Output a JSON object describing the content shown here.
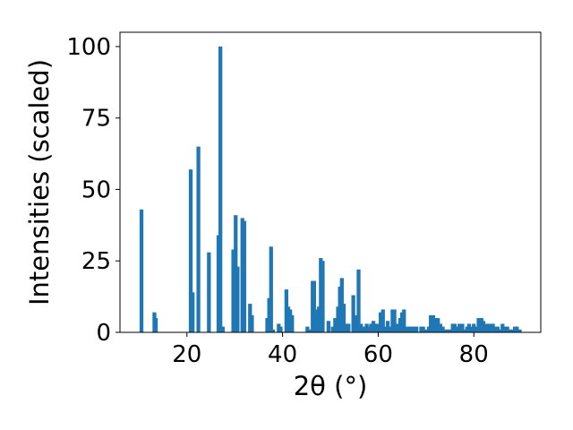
{
  "chart_data": {
    "type": "bar",
    "xlabel": "2θ (°)",
    "ylabel": "Intensities (scaled)",
    "xlim": [
      6,
      94
    ],
    "ylim": [
      0,
      105
    ],
    "xticks": [
      20,
      40,
      60,
      80
    ],
    "yticks": [
      0,
      25,
      50,
      75,
      100
    ],
    "grid": false,
    "bar_color": "#1f77b4",
    "bar_width": 0.8,
    "x": [
      10.5,
      13.2,
      13.5,
      20.8,
      21.2,
      22.4,
      24.6,
      26.6,
      27.0,
      27.5,
      29.7,
      30.2,
      30.6,
      31.6,
      32.0,
      33.2,
      33.6,
      36.8,
      37.2,
      37.6,
      38.0,
      39.2,
      39.6,
      40.8,
      41.2,
      41.6,
      42.0,
      45.2,
      45.6,
      46.3,
      46.6,
      47.0,
      47.6,
      48.0,
      48.4,
      49.6,
      50.5,
      51.0,
      51.6,
      52.0,
      52.4,
      52.8,
      53.4,
      53.8,
      54.8,
      55.4,
      55.9,
      56.4,
      57.0,
      57.6,
      58.0,
      58.5,
      59.0,
      59.4,
      60.0,
      60.5,
      61.0,
      61.4,
      62.0,
      62.6,
      63.0,
      63.4,
      64.0,
      64.6,
      65.0,
      65.4,
      66.0,
      66.6,
      67.0,
      67.6,
      68.0,
      69.0,
      69.4,
      70.0,
      70.6,
      71.0,
      71.5,
      72.0,
      72.5,
      73.0,
      73.5,
      74.0,
      74.6,
      75.0,
      75.6,
      76.0,
      76.6,
      77.0,
      77.6,
      78.0,
      78.6,
      79.0,
      79.6,
      80.0,
      80.6,
      81.0,
      81.6,
      82.0,
      82.6,
      83.0,
      83.6,
      84.0,
      84.6,
      85.0,
      85.6,
      86.0,
      86.6,
      87.0,
      87.6,
      88.0,
      88.6,
      89.0,
      89.6
    ],
    "values": [
      43,
      7,
      5,
      57,
      14,
      65,
      28,
      34,
      100,
      2,
      29,
      41,
      23,
      40,
      39,
      10,
      6,
      5,
      12,
      30,
      1,
      3,
      2,
      15,
      9,
      8,
      6,
      2,
      1,
      18,
      18,
      8,
      9,
      26,
      25,
      4,
      2,
      5,
      9,
      16,
      19,
      10,
      3,
      3,
      13,
      6,
      22,
      3,
      2,
      3,
      2,
      3,
      4,
      3,
      3,
      7,
      8,
      2,
      4,
      2,
      8,
      8,
      3,
      5,
      7,
      8,
      2,
      2,
      2,
      2,
      2,
      2,
      2,
      1,
      2,
      6,
      6,
      5,
      5,
      3,
      2,
      1,
      1,
      1,
      3,
      3,
      2,
      3,
      3,
      1,
      2,
      3,
      2,
      3,
      2,
      5,
      5,
      4,
      3,
      3,
      3,
      3,
      2,
      2,
      1,
      3,
      2,
      2,
      1,
      1,
      2,
      2,
      1
    ]
  }
}
